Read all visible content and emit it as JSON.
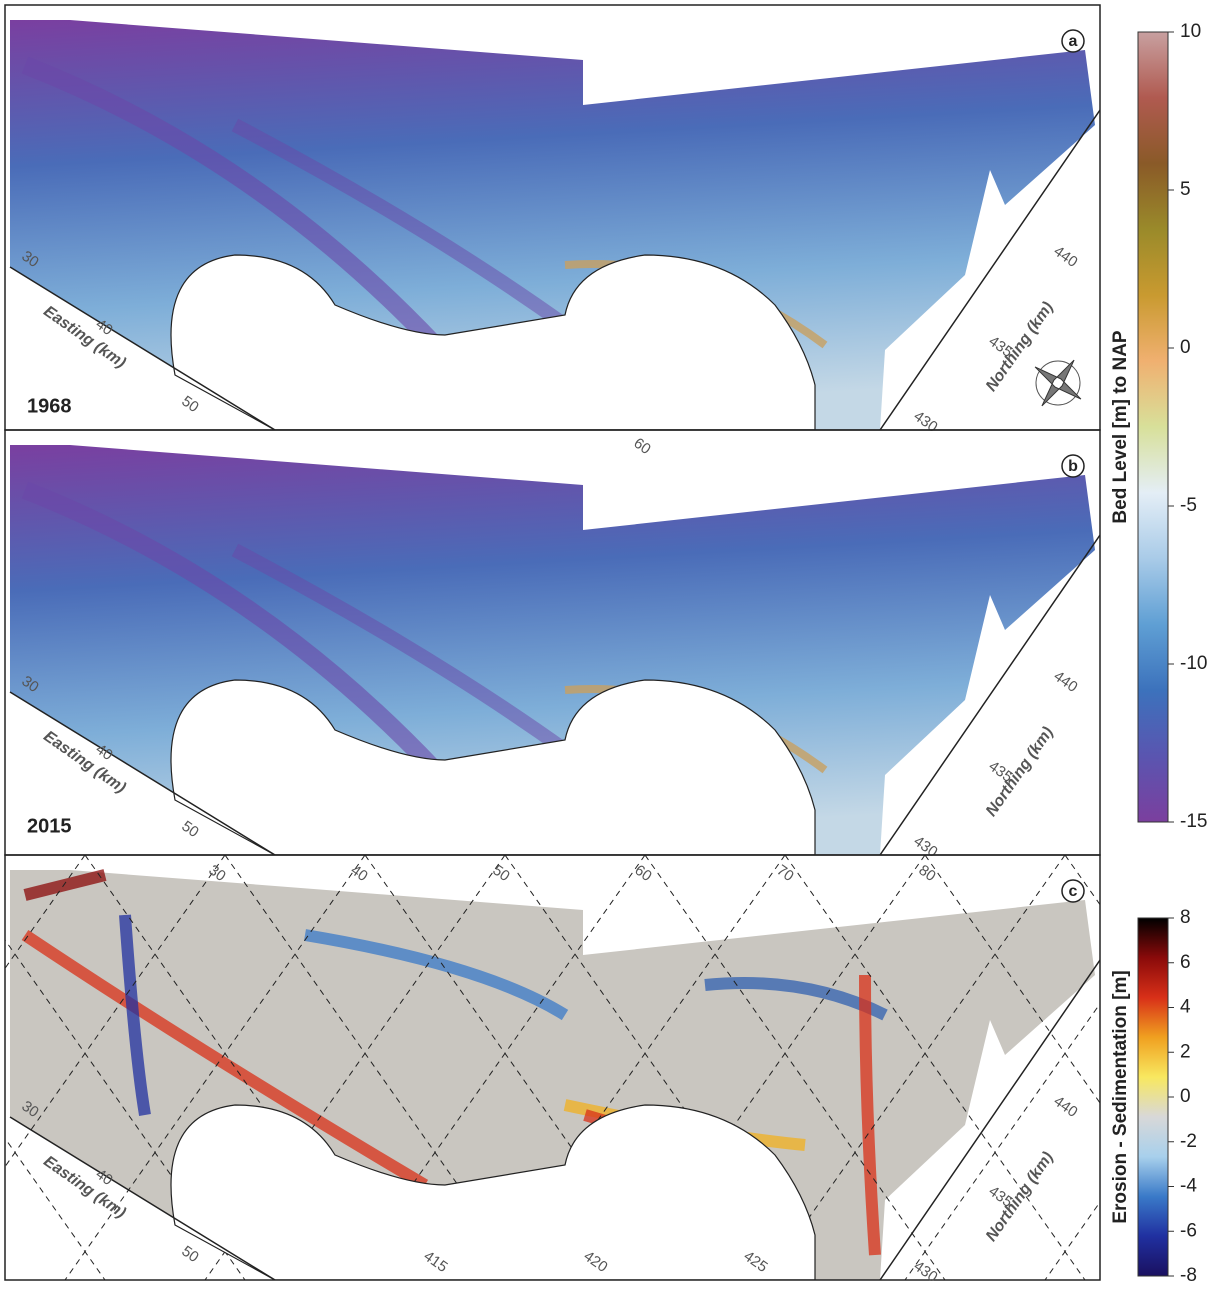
{
  "panels": [
    {
      "label": "a",
      "year": "1968",
      "easting_label": "Easting (km)",
      "northing_label": "Northing (km)",
      "easting_ticks": [
        "30",
        "40",
        "50"
      ],
      "northing_ticks": [
        "440",
        "435",
        "430"
      ]
    },
    {
      "label": "b",
      "year": "2015",
      "easting_label": "Easting (km)",
      "northing_label": "Northing (km)",
      "easting_ticks": [
        "30",
        "40",
        "50"
      ],
      "northing_ticks": [
        "440",
        "435",
        "430"
      ],
      "top_ticks": [
        "60"
      ]
    },
    {
      "label": "c",
      "easting_label": "Easting (km)",
      "northing_label": "Northing (km)",
      "easting_ticks": [
        "30",
        "40",
        "50"
      ],
      "northing_ticks": [
        "440",
        "435",
        "430"
      ],
      "top_ticks": [
        "30",
        "40",
        "50",
        "60",
        "70",
        "80"
      ],
      "bottom_ticks": [
        "415",
        "420",
        "425"
      ]
    }
  ],
  "colorbars": [
    {
      "title": "Bed Level  [m] to NAP",
      "lim": [
        -15,
        10
      ],
      "ticks": [
        10,
        5,
        0,
        -5,
        -10,
        -15
      ],
      "colors": [
        "#7b3f9e",
        "#5a55b0",
        "#3c72bc",
        "#5f9fd4",
        "#a9cbe8",
        "#e4eef6",
        "#d8e09a",
        "#f0b070",
        "#c99a30",
        "#9a8a2a",
        "#8a5a28",
        "#b05a50",
        "#c8a0a0"
      ]
    },
    {
      "title": "Erosion   -   Sedimentation [m]",
      "lim": [
        -8,
        8
      ],
      "ticks": [
        8,
        6,
        4,
        2,
        0,
        -2,
        -4,
        -6,
        -8
      ],
      "colors": [
        "#1a1060",
        "#2030a0",
        "#3a7ac8",
        "#a8d0ec",
        "#d8d8d8",
        "#f8e860",
        "#f0a020",
        "#d83018",
        "#8a0a0a",
        "#000000"
      ]
    }
  ]
}
